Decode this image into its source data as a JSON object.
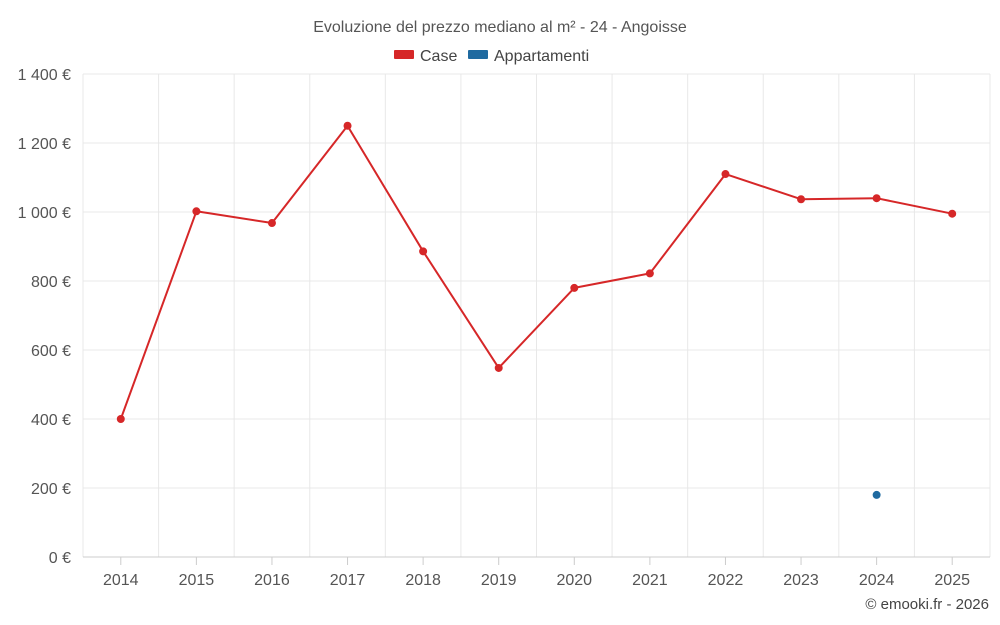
{
  "chart_data": {
    "type": "line",
    "title": "Evoluzione del prezzo mediano al m² - 24 - Angoisse",
    "categories": [
      "2014",
      "2015",
      "2016",
      "2017",
      "2018",
      "2019",
      "2020",
      "2021",
      "2022",
      "2023",
      "2024",
      "2025"
    ],
    "series": [
      {
        "name": "Case",
        "color": "#d62728",
        "values": [
          400,
          1002,
          968,
          1250,
          886,
          548,
          780,
          822,
          1110,
          1037,
          1040,
          995
        ]
      },
      {
        "name": "Appartamenti",
        "color": "#1f6aa0",
        "values": [
          null,
          null,
          null,
          null,
          null,
          null,
          null,
          null,
          null,
          null,
          180,
          null
        ]
      }
    ],
    "y_ticks": [
      0,
      200,
      400,
      600,
      800,
      1000,
      1200,
      1400
    ],
    "y_tick_labels": [
      "0 €",
      "200 €",
      "400 €",
      "600 €",
      "800 €",
      "1 000 €",
      "1 200 €",
      "1 400 €"
    ],
    "ylim": [
      0,
      1400
    ],
    "legend_position": "top-center",
    "grid": true
  },
  "credits": "© emooki.fr - 2026"
}
